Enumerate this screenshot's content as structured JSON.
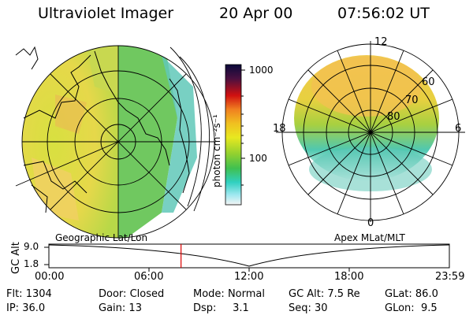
{
  "header": {
    "title": "Ultraviolet Imager",
    "date": "20 Apr 00",
    "time": "07:56:02 UT"
  },
  "colorbar": {
    "label": "photon cm⁻²s⁻¹",
    "ticks": [
      "1000",
      "100"
    ]
  },
  "polar": {
    "mlt_labels": [
      "12",
      "18",
      "6",
      "0"
    ],
    "lat_labels": [
      "60",
      "70",
      "80"
    ]
  },
  "map_labels": {
    "left": "Geographic Lat/Lon",
    "right": "Apex MLat/MLT"
  },
  "timeline": {
    "ylabel": "GC Alt",
    "y_ticks": [
      "9.0",
      "1.8"
    ],
    "x_ticks": [
      "00:00",
      "06:00",
      "12:00",
      "18:00",
      "23:59"
    ],
    "current_time_fraction": 0.33
  },
  "info": {
    "flt_label": "Flt:",
    "flt": "1304",
    "ip_label": "IP:",
    "ip": "36.0",
    "door_label": "Door:",
    "door": "Closed",
    "gain_label": "Gain:",
    "gain": "13",
    "mode_label": "Mode:",
    "mode": "Normal",
    "dsp_label": "Dsp:",
    "dsp": "3.1",
    "gcalt_label": "GC Alt:",
    "gcalt": "7.5 Re",
    "seq_label": "Seq:",
    "seq": "30",
    "glat_label": "GLat:",
    "glat": "86.0",
    "glon_label": "GLon:",
    "glon": "9.5"
  },
  "colors": {
    "bar_top": "#0a0a3a",
    "bar_mid_red": "#d01010",
    "bar_orange": "#f0a020",
    "bar_yellow": "#e8e020",
    "bar_green": "#40c040",
    "bar_cyan": "#30d0c0",
    "bar_bottom": "#f0f0f0",
    "marker": "#dd0000"
  }
}
